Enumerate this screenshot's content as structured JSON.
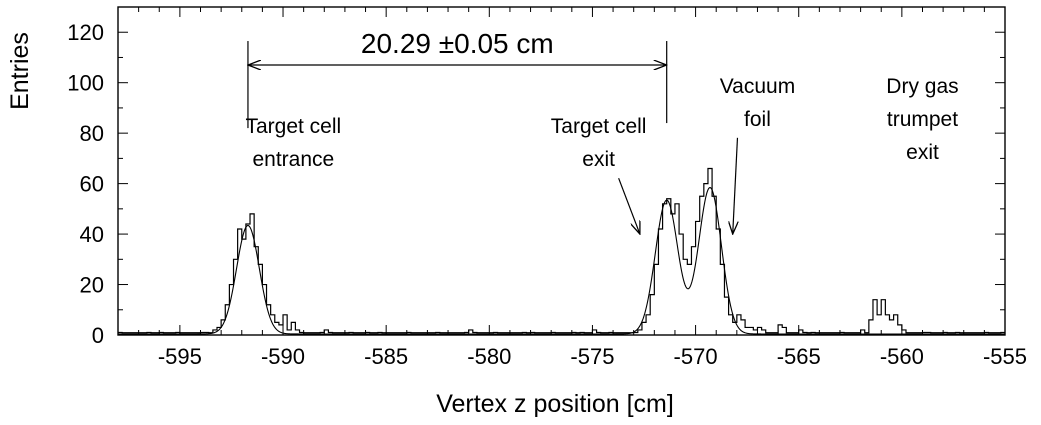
{
  "chart_data": {
    "type": "histogram",
    "xlabel": "Vertex z position [cm]",
    "ylabel": "Entries",
    "xlim": [
      -598,
      -555
    ],
    "ylim": [
      0,
      130
    ],
    "xticks": [
      -595,
      -590,
      -585,
      -580,
      -575,
      -570,
      -565,
      -560,
      -555
    ],
    "yticks": [
      0,
      20,
      40,
      60,
      80,
      100,
      120
    ],
    "xtick_labels": [
      "-595",
      "-590",
      "-585",
      "-580",
      "-575",
      "-570",
      "-565",
      "-560",
      "-555"
    ],
    "ytick_labels": [
      "0",
      "20",
      "40",
      "60",
      "80",
      "100",
      "120"
    ],
    "grid": false,
    "bin_width": 0.2,
    "histogram_bins": [
      [
        -598.0,
        1
      ],
      [
        -596.0,
        1
      ],
      [
        -594.0,
        1
      ],
      [
        -593.4,
        2
      ],
      [
        -593.2,
        3
      ],
      [
        -593.0,
        6
      ],
      [
        -592.8,
        12
      ],
      [
        -592.6,
        20
      ],
      [
        -592.4,
        30
      ],
      [
        -592.2,
        42
      ],
      [
        -592.0,
        38
      ],
      [
        -591.8,
        44
      ],
      [
        -591.6,
        48
      ],
      [
        -591.4,
        35
      ],
      [
        -591.2,
        28
      ],
      [
        -591.0,
        20
      ],
      [
        -590.8,
        12
      ],
      [
        -590.6,
        8
      ],
      [
        -590.4,
        5
      ],
      [
        -590.2,
        4
      ],
      [
        -590.0,
        8
      ],
      [
        -589.8,
        2
      ],
      [
        -589.6,
        5
      ],
      [
        -589.4,
        2
      ],
      [
        -589.2,
        1
      ],
      [
        -588.0,
        2
      ],
      [
        -587.8,
        1
      ],
      [
        -586.0,
        1
      ],
      [
        -584.0,
        1
      ],
      [
        -581.0,
        2
      ],
      [
        -580.8,
        1
      ],
      [
        -578.0,
        1
      ],
      [
        -576.0,
        1
      ],
      [
        -575.0,
        2
      ],
      [
        -574.8,
        1
      ],
      [
        -573.0,
        1
      ],
      [
        -572.8,
        2
      ],
      [
        -572.6,
        5
      ],
      [
        -572.4,
        8
      ],
      [
        -572.2,
        16
      ],
      [
        -572.0,
        28
      ],
      [
        -571.8,
        42
      ],
      [
        -571.6,
        52
      ],
      [
        -571.4,
        54
      ],
      [
        -571.2,
        48
      ],
      [
        -571.0,
        52
      ],
      [
        -570.8,
        40
      ],
      [
        -570.6,
        30
      ],
      [
        -570.4,
        28
      ],
      [
        -570.2,
        35
      ],
      [
        -570.0,
        45
      ],
      [
        -569.8,
        55
      ],
      [
        -569.6,
        60
      ],
      [
        -569.4,
        66
      ],
      [
        -569.2,
        55
      ],
      [
        -569.0,
        42
      ],
      [
        -568.8,
        28
      ],
      [
        -568.6,
        15
      ],
      [
        -568.4,
        8
      ],
      [
        -568.2,
        5
      ],
      [
        -568.0,
        8
      ],
      [
        -567.8,
        6
      ],
      [
        -567.6,
        3
      ],
      [
        -567.4,
        3
      ],
      [
        -567.2,
        2
      ],
      [
        -567.0,
        3
      ],
      [
        -566.8,
        2
      ],
      [
        -566.0,
        4
      ],
      [
        -565.8,
        3
      ],
      [
        -565.0,
        2
      ],
      [
        -564.8,
        1
      ],
      [
        -563.0,
        1
      ],
      [
        -562.0,
        2
      ],
      [
        -561.6,
        6
      ],
      [
        -561.4,
        14
      ],
      [
        -561.2,
        8
      ],
      [
        -561.0,
        14
      ],
      [
        -560.8,
        8
      ],
      [
        -560.6,
        6
      ],
      [
        -560.4,
        8
      ],
      [
        -560.2,
        4
      ],
      [
        -560.0,
        2
      ],
      [
        -559.0,
        1
      ],
      [
        -558.0,
        1
      ],
      [
        -556.0,
        1
      ],
      [
        -555.2,
        1
      ]
    ],
    "series": [
      {
        "type": "histogram_step",
        "bins_ref": "histogram_bins"
      },
      {
        "type": "fit_curve",
        "model": "gaussians",
        "components": [
          {
            "mu": -591.7,
            "sigma": 0.55,
            "amplitude": 43
          },
          {
            "mu": -571.4,
            "sigma": 0.55,
            "amplitude": 53
          },
          {
            "mu": -569.3,
            "sigma": 0.55,
            "amplitude": 58
          }
        ]
      }
    ],
    "annotations": [
      {
        "text_lines": [
          "Target cell",
          "entrance"
        ],
        "x": -589.5,
        "y": 80
      },
      {
        "text_lines": [
          "Target cell",
          "exit"
        ],
        "x": -574.7,
        "y": 80,
        "arrow_to": [
          -572.7,
          40
        ]
      },
      {
        "text_lines": [
          "Vacuum",
          "foil"
        ],
        "x": -567.0,
        "y": 96,
        "arrow_to": [
          -568.2,
          40
        ]
      },
      {
        "text_lines": [
          "Dry gas",
          "trumpet",
          "exit"
        ],
        "x": -559.0,
        "y": 96
      }
    ],
    "measure": {
      "label": "20.29 ±0.05 cm",
      "x_from": -591.7,
      "x_to": -571.4,
      "y": 107
    }
  }
}
